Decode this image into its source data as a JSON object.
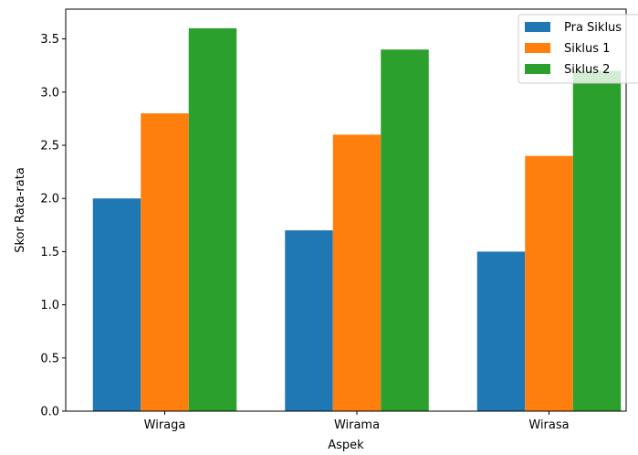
{
  "chart_data": {
    "type": "bar",
    "categories": [
      "Wiraga",
      "Wirama",
      "Wirasa"
    ],
    "series": [
      {
        "name": "Pra Siklus",
        "color": "#1f77b4",
        "values": [
          2.0,
          1.7,
          1.5
        ]
      },
      {
        "name": "Siklus 1",
        "color": "#ff7f0e",
        "values": [
          2.8,
          2.6,
          2.4
        ]
      },
      {
        "name": "Siklus 2",
        "color": "#2ca02c",
        "values": [
          3.6,
          3.4,
          3.2
        ]
      }
    ],
    "xlabel": "Aspek",
    "ylabel": "Skor Rata-rata",
    "ylim": [
      0,
      3.78
    ],
    "yticks": [
      "0.0",
      "0.5",
      "1.0",
      "1.5",
      "2.0",
      "2.5",
      "3.0",
      "3.5"
    ],
    "grid": false,
    "legend_position": "top-right"
  }
}
